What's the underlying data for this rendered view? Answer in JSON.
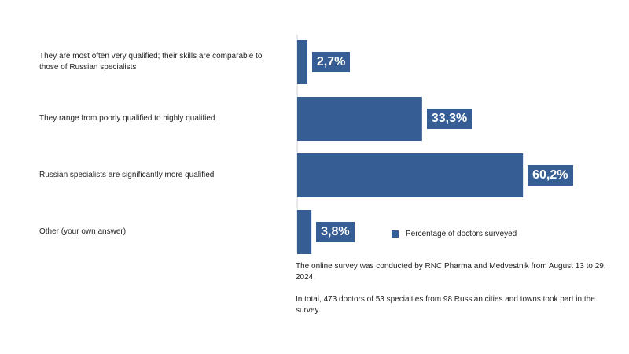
{
  "chart_data": {
    "type": "bar",
    "orientation": "horizontal",
    "categories": [
      "They are most often very qualified; their skills are comparable to those of Russian specialists",
      "They range from poorly qualified to highly qualified",
      "Russian specialists are significantly more qualified",
      "Other (your own answer)"
    ],
    "series": [
      {
        "name": "Percentage of doctors surveyed",
        "values": [
          2.7,
          33.3,
          60.2,
          3.8
        ],
        "labels": [
          "2,7%",
          "33,3%",
          "60,2%",
          "3,8%"
        ]
      }
    ],
    "xlim": [
      0,
      65
    ],
    "grid": false,
    "legend_position": "right",
    "bar_color": "#375e94"
  },
  "notes": [
    "The online survey was conducted by RNC Pharma and Medvestnik from August 13 to 29, 2024.",
    "In total, 473 doctors of 53 specialties from 98 Russian cities and towns took part in the survey."
  ]
}
